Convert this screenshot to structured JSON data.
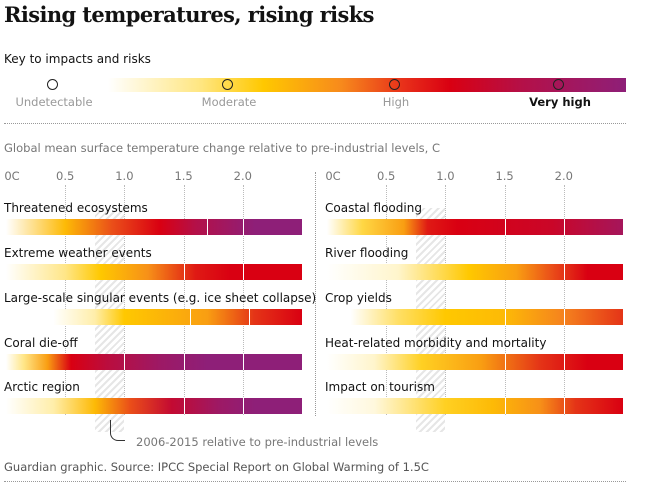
{
  "title": "Rising temperatures, rising risks",
  "key": {
    "title": "Key to impacts and risks",
    "levels": [
      {
        "label": "Undetectable",
        "color": "#ffffff",
        "bold": false
      },
      {
        "label": "Moderate",
        "color": "#ffc800",
        "bold": false
      },
      {
        "label": "High",
        "color": "#e00010",
        "bold": false
      },
      {
        "label": "Very high",
        "color": "#8e1f78",
        "bold": true
      }
    ]
  },
  "chart_data": {
    "type": "heatmap",
    "title": "Rising temperatures, rising risks",
    "subtitle": "Global mean surface temperature change relative to pre-industrial levels, C",
    "x_ticks": [
      "0C",
      "0.5",
      "1.0",
      "1.5",
      "2.0"
    ],
    "x_tick_values": [
      0,
      0.5,
      1.0,
      1.5,
      2.0
    ],
    "xlim": [
      0,
      2.5
    ],
    "risk_scale": {
      "0": "Undetectable",
      "1": "Moderate",
      "2": "High",
      "3": "Very high"
    },
    "highlight_band": {
      "x_range": [
        0.75,
        1.0
      ],
      "label": "2006-2015 relative to pre-industrial levels"
    },
    "panels": [
      {
        "rows": [
          {
            "label": "Threatened ecosystems",
            "label_extra": "",
            "stops": [
              [
                0,
                0
              ],
              [
                0.5,
                1.1
              ],
              [
                0.9,
                1.7
              ],
              [
                1.3,
                2.0
              ],
              [
                1.6,
                2.5
              ],
              [
                2.1,
                3.0
              ],
              [
                2.5,
                3.0
              ]
            ],
            "white_ticks": [
              1.7,
              2.0
            ]
          },
          {
            "label": "Extreme weather events",
            "label_extra": "",
            "stops": [
              [
                0,
                0
              ],
              [
                0.5,
                0.6
              ],
              [
                0.8,
                1.0
              ],
              [
                1.2,
                1.4
              ],
              [
                1.6,
                1.9
              ],
              [
                1.9,
                2.0
              ],
              [
                2.5,
                2.0
              ]
            ],
            "white_ticks": [
              1.5,
              2.0
            ]
          },
          {
            "label": "Large-scale singular events",
            "label_extra": " (e.g. ice sheet collapse)",
            "stops": [
              [
                0,
                0
              ],
              [
                0.4,
                0.0
              ],
              [
                0.75,
                0.5
              ],
              [
                1.0,
                1.0
              ],
              [
                1.7,
                1.3
              ],
              [
                2.1,
                1.8
              ],
              [
                2.5,
                2.0
              ]
            ],
            "white_ticks": [
              1.55,
              2.05
            ]
          },
          {
            "label": "Coral die-off",
            "label_extra": "",
            "stops": [
              [
                0,
                0
              ],
              [
                0.15,
                0.6
              ],
              [
                0.35,
                1.3
              ],
              [
                0.55,
                2.0
              ],
              [
                0.85,
                2.4
              ],
              [
                1.3,
                2.8
              ],
              [
                1.7,
                3.0
              ],
              [
                2.5,
                3.0
              ]
            ],
            "white_ticks": [
              1.0,
              1.5,
              2.0
            ]
          },
          {
            "label": "Arctic region",
            "label_extra": "",
            "stops": [
              [
                0,
                0
              ],
              [
                0.4,
                0.5
              ],
              [
                0.75,
                1.1
              ],
              [
                1.05,
                1.7
              ],
              [
                1.4,
                2.3
              ],
              [
                1.8,
                2.8
              ],
              [
                2.1,
                3.0
              ],
              [
                2.5,
                3.0
              ]
            ],
            "white_ticks": [
              1.5,
              2.0
            ]
          }
        ]
      },
      {
        "rows": [
          {
            "label": "Coastal flooding",
            "label_extra": "",
            "stops": [
              [
                0,
                0
              ],
              [
                0.3,
                0.8
              ],
              [
                0.65,
                1.3
              ],
              [
                0.85,
                1.9
              ],
              [
                1.1,
                2.0
              ],
              [
                1.9,
                2.2
              ],
              [
                2.5,
                2.7
              ]
            ],
            "white_ticks": [
              1.5,
              2.0
            ]
          },
          {
            "label": "River flooding",
            "label_extra": "",
            "stops": [
              [
                0,
                0
              ],
              [
                0.6,
                0.3
              ],
              [
                1.2,
                1.0
              ],
              [
                1.6,
                1.3
              ],
              [
                1.9,
                1.7
              ],
              [
                2.2,
                2.0
              ],
              [
                2.5,
                2.0
              ]
            ],
            "white_ticks": [
              2.0
            ]
          },
          {
            "label": "Crop yields",
            "label_extra": "",
            "stops": [
              [
                0,
                0
              ],
              [
                0.2,
                0.0
              ],
              [
                0.6,
                0.7
              ],
              [
                1.0,
                1.0
              ],
              [
                1.5,
                1.1
              ],
              [
                2.0,
                1.5
              ],
              [
                2.5,
                1.8
              ]
            ],
            "white_ticks": [
              1.5,
              2.0
            ]
          },
          {
            "label": "Heat-related morbidity and mortality",
            "label_extra": "",
            "stops": [
              [
                0,
                0
              ],
              [
                0.4,
                0.3
              ],
              [
                0.8,
                0.9
              ],
              [
                1.3,
                1.3
              ],
              [
                1.8,
                1.8
              ],
              [
                2.2,
                2.0
              ],
              [
                2.5,
                2.0
              ]
            ],
            "white_ticks": [
              1.5,
              2.0
            ]
          },
          {
            "label": "Impact on tourism",
            "label_extra": "",
            "stops": [
              [
                0,
                0
              ],
              [
                0.4,
                0.2
              ],
              [
                1.0,
                0.9
              ],
              [
                1.4,
                1.1
              ],
              [
                1.8,
                1.4
              ],
              [
                2.1,
                1.8
              ],
              [
                2.5,
                2.0
              ]
            ],
            "white_ticks": [
              1.5,
              2.0
            ]
          }
        ]
      }
    ]
  },
  "source": "Guardian graphic. Source: IPCC Special Report on Global Warming of 1.5C"
}
